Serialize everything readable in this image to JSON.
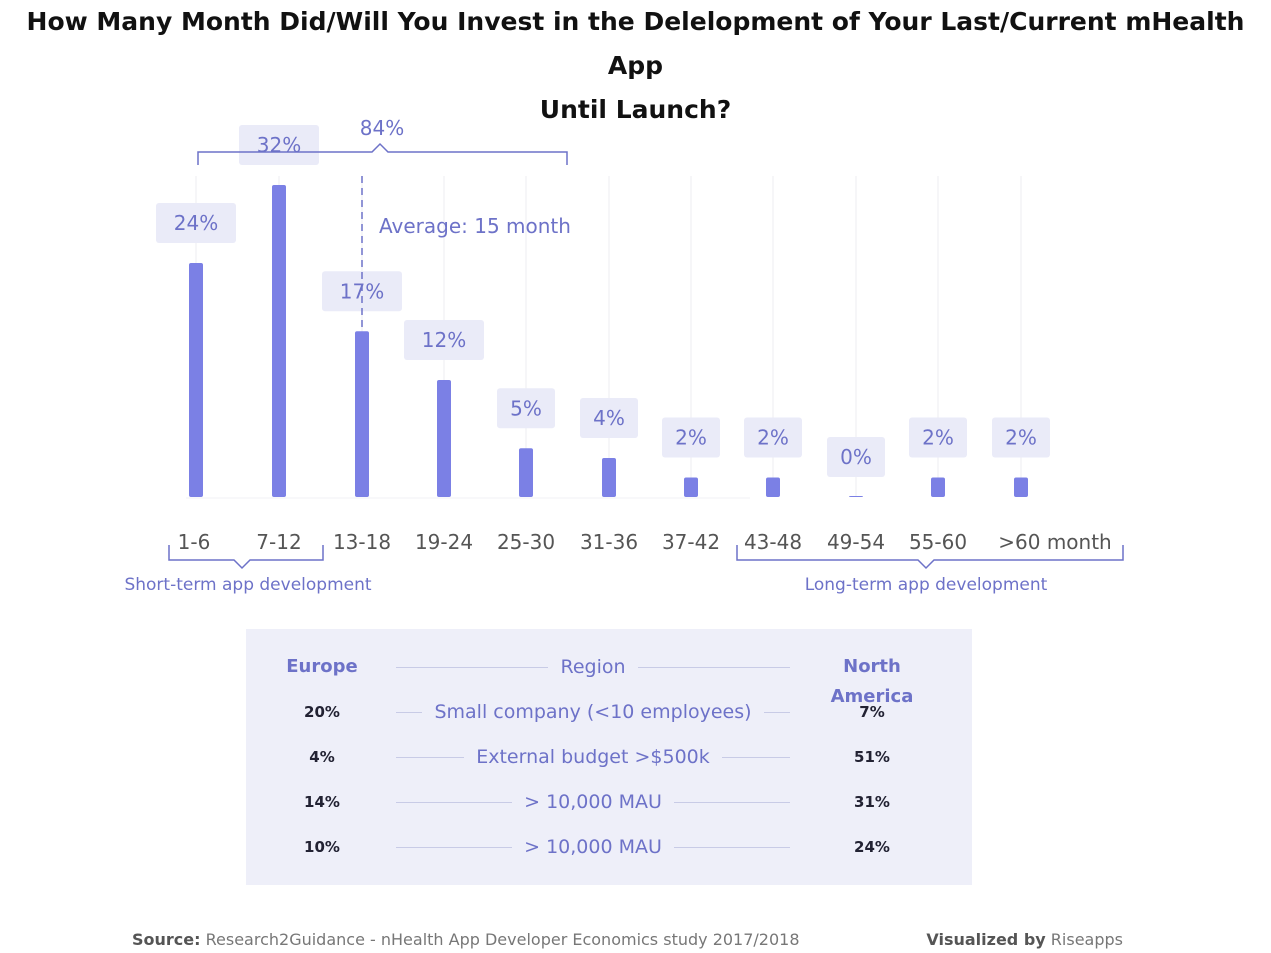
{
  "title_line1": "How Many Month Did/Will You Invest in the Delelopment of Your Last/Current mHealth App",
  "title_line2": "Until Launch?",
  "colors": {
    "bar": "#7b80e5",
    "label_box": "#eaebf8",
    "label_text": "#6d72c8",
    "axis_text": "#555555",
    "grid": "#ececf2"
  },
  "chart_data": {
    "type": "bar",
    "categories": [
      "1-6",
      "7-12",
      "13-18",
      "19-24",
      "25-30",
      "31-36",
      "37-42",
      "43-48",
      "49-54",
      "55-60",
      ">60 month"
    ],
    "values": [
      24,
      32,
      17,
      12,
      5,
      4,
      2,
      2,
      0,
      2,
      2
    ],
    "value_labels": [
      "24%",
      "32%",
      "17%",
      "12%",
      "5%",
      "4%",
      "2%",
      "2%",
      "0%",
      "2%",
      "2%"
    ],
    "ylim": [
      0,
      32
    ],
    "grid": "vertical",
    "annotations": {
      "bracket_label": "84%",
      "average_label": "Average: 15 month",
      "short_term_label": "Short-term app development",
      "long_term_label": "Long-term app development"
    }
  },
  "table": {
    "header": {
      "left": "Europe",
      "middle": "Region",
      "right": "North America"
    },
    "rows": [
      {
        "left": "20%",
        "middle": "Small company (<10 employees)",
        "right": "7%"
      },
      {
        "left": "4%",
        "middle": "External budget >$500k",
        "right": "51%"
      },
      {
        "left": "14%",
        "middle": "> 10,000 MAU",
        "right": "31%"
      },
      {
        "left": "10%",
        "middle": "> 10,000 MAU",
        "right": "24%"
      }
    ]
  },
  "footer": {
    "source_label": "Source:",
    "source_text": "Research2Guidance - nHealth App Developer Economics study 2017/2018",
    "visualized_label": "Visualized by",
    "visualized_text": "Riseapps"
  }
}
